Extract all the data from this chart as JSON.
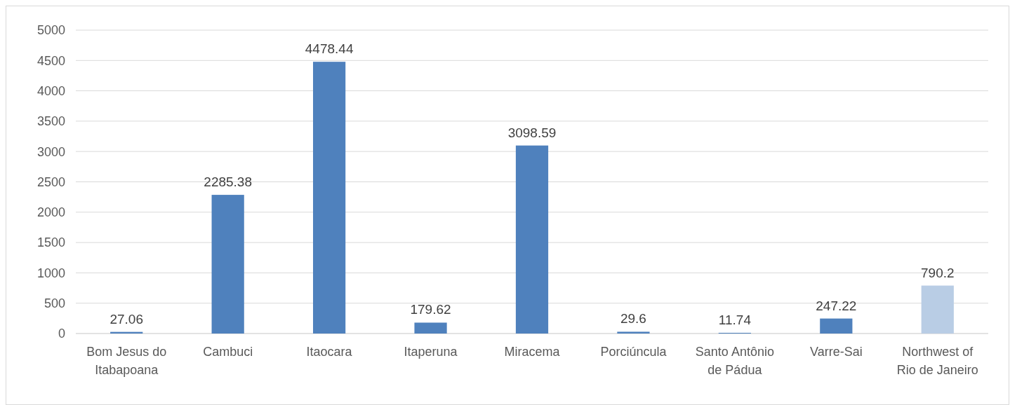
{
  "chart_data": {
    "type": "bar",
    "categories": [
      "Bom Jesus do Itabapoana",
      "Cambuci",
      "Itaocara",
      "Itaperuna",
      "Miracema",
      "Porciúncula",
      "Santo Antônio de Pádua",
      "Varre-Sai",
      "Northwest of Rio de Janeiro"
    ],
    "values": [
      27.06,
      2285.38,
      4478.44,
      179.62,
      3098.59,
      29.6,
      11.74,
      247.22,
      790.2
    ],
    "colors": [
      "#4f81bd",
      "#4f81bd",
      "#4f81bd",
      "#4f81bd",
      "#4f81bd",
      "#4f81bd",
      "#4f81bd",
      "#4f81bd",
      "#b9cde5"
    ],
    "ylim": [
      0,
      5000
    ],
    "yticks": [
      0,
      500,
      1000,
      1500,
      2000,
      2500,
      3000,
      3500,
      4000,
      4500,
      5000
    ],
    "grid": "y",
    "data_labels": true
  }
}
